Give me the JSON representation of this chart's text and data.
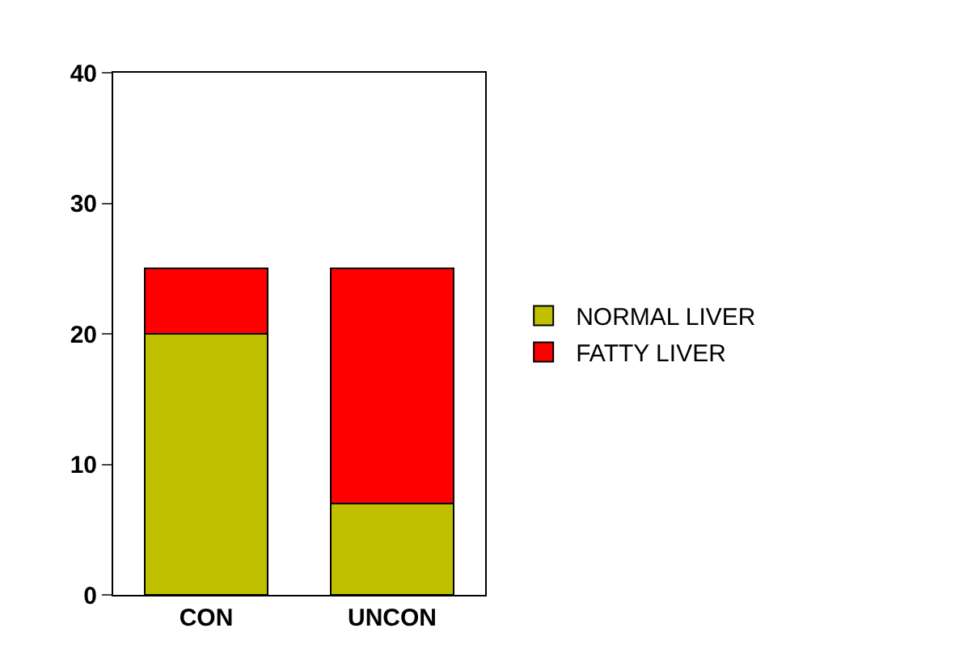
{
  "chart_data": {
    "type": "bar",
    "stacked": true,
    "categories": [
      "CON",
      "UNCON"
    ],
    "series": [
      {
        "name": "NORMAL LIVER",
        "color": "#c0c000",
        "values": [
          20,
          7
        ]
      },
      {
        "name": "FATTY LIVER",
        "color": "#ff0000",
        "values": [
          5,
          18
        ]
      }
    ],
    "ylim": [
      0,
      40
    ],
    "yticks": [
      0,
      10,
      20,
      30,
      40
    ],
    "grid": false,
    "legend": "right"
  }
}
